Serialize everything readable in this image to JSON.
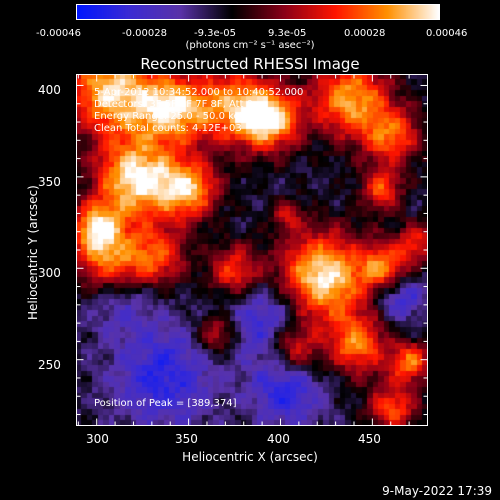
{
  "colorbar": {
    "tick_labels": [
      "-0.00046",
      "-0.00028",
      "-9.3e-05",
      "9.3e-05",
      "0.00028",
      "0.00046"
    ],
    "units": "(photons cm⁻² s⁻¹ asec⁻²)",
    "range": [
      -0.00046,
      0.00046
    ],
    "colors": [
      "#0016ff",
      "#3b2bd4",
      "#5a33a8",
      "#000000",
      "#8a0018",
      "#ff1500",
      "#ff9000",
      "#ffffff"
    ]
  },
  "plot": {
    "title": "Reconstructed RHESSI Image",
    "annotations": [
      "5-Apr-2012 10:34:52.000 to 10:40:52.000",
      "Detectors: 3F 5F 6F 7F 8F, Att 0",
      "Energy Range: 25.0 - 50.0 keV",
      "Clean    Total counts: 4.12E+03"
    ],
    "peak_text": "Position of Peak = [389,374]",
    "xlabel": "Heliocentric X (arcsec)",
    "ylabel": "Heliocentric Y (arcsec)",
    "x_ticks": [
      "300",
      "350",
      "400",
      "450"
    ],
    "y_ticks": [
      "400",
      "350",
      "300",
      "250"
    ],
    "x_range": [
      289,
      480
    ],
    "y_range": [
      214,
      406
    ]
  },
  "footer": {
    "date_text": "9-May-2022 17:39"
  }
}
